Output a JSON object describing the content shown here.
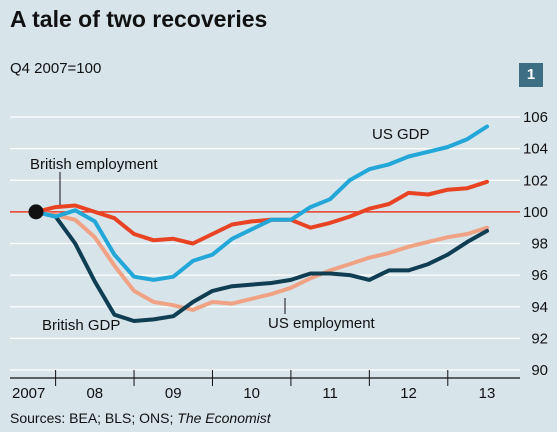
{
  "title": "A tale of two recoveries",
  "subtitle": "Q4 2007=100",
  "chart_number": "1",
  "source": "Sources: BEA; BLS; ONS; ",
  "source_italic": "The Economist",
  "chart_data": {
    "type": "line",
    "ylim": [
      90,
      106
    ],
    "y_ticks": [
      "90",
      "92",
      "94",
      "96",
      "98",
      "100",
      "102",
      "104",
      "106"
    ],
    "x_ticks": [
      "2007",
      "08",
      "09",
      "10",
      "11",
      "12",
      "13"
    ],
    "baseline": 100,
    "colors": {
      "US GDP": "#22a7d8",
      "British employment": "#e84424",
      "British GDP": "#0f3d52",
      "US employment": "#f0a285",
      "baseline": "#e83a24"
    },
    "series": [
      {
        "name": "US GDP",
        "x": [
          2007.75,
          2008.0,
          2008.25,
          2008.5,
          2008.75,
          2009.0,
          2009.25,
          2009.5,
          2009.75,
          2010.0,
          2010.25,
          2010.5,
          2010.75,
          2011.0,
          2011.25,
          2011.5,
          2011.75,
          2012.0,
          2012.25,
          2012.5,
          2012.75,
          2013.0,
          2013.25,
          2013.5
        ],
        "values": [
          100.0,
          99.7,
          100.1,
          99.4,
          97.3,
          95.9,
          95.7,
          95.9,
          96.9,
          97.3,
          98.3,
          98.9,
          99.5,
          99.5,
          100.3,
          100.8,
          102.0,
          102.7,
          103.0,
          103.5,
          103.8,
          104.1,
          104.6,
          105.4
        ]
      },
      {
        "name": "British employment",
        "x": [
          2007.75,
          2008.0,
          2008.25,
          2008.5,
          2008.75,
          2009.0,
          2009.25,
          2009.5,
          2009.75,
          2010.0,
          2010.25,
          2010.5,
          2010.75,
          2011.0,
          2011.25,
          2011.5,
          2011.75,
          2012.0,
          2012.25,
          2012.5,
          2012.75,
          2013.0,
          2013.25,
          2013.5
        ],
        "values": [
          100.0,
          100.3,
          100.4,
          100.0,
          99.6,
          98.6,
          98.2,
          98.3,
          98.0,
          98.6,
          99.2,
          99.4,
          99.5,
          99.5,
          99.0,
          99.3,
          99.7,
          100.2,
          100.5,
          101.2,
          101.1,
          101.4,
          101.5,
          101.9
        ]
      },
      {
        "name": "British GDP",
        "x": [
          2007.75,
          2008.0,
          2008.25,
          2008.5,
          2008.75,
          2009.0,
          2009.25,
          2009.5,
          2009.75,
          2010.0,
          2010.25,
          2010.5,
          2010.75,
          2011.0,
          2011.25,
          2011.5,
          2011.75,
          2012.0,
          2012.25,
          2012.5,
          2012.75,
          2013.0,
          2013.25,
          2013.5
        ],
        "values": [
          100.0,
          99.7,
          98.0,
          95.6,
          93.5,
          93.1,
          93.2,
          93.4,
          94.3,
          95.0,
          95.3,
          95.4,
          95.5,
          95.7,
          96.1,
          96.1,
          96.0,
          95.7,
          96.3,
          96.3,
          96.7,
          97.3,
          98.1,
          98.8
        ]
      },
      {
        "name": "US employment",
        "x": [
          2007.75,
          2008.0,
          2008.25,
          2008.5,
          2008.75,
          2009.0,
          2009.25,
          2009.5,
          2009.75,
          2010.0,
          2010.25,
          2010.5,
          2010.75,
          2011.0,
          2011.25,
          2011.5,
          2011.75,
          2012.0,
          2012.25,
          2012.5,
          2012.75,
          2013.0,
          2013.25,
          2013.5
        ],
        "values": [
          100.0,
          99.8,
          99.5,
          98.4,
          96.6,
          95.0,
          94.3,
          94.1,
          93.8,
          94.3,
          94.2,
          94.5,
          94.8,
          95.2,
          95.8,
          96.3,
          96.7,
          97.1,
          97.4,
          97.8,
          98.1,
          98.4,
          98.6,
          99.0
        ]
      }
    ],
    "series_labels": [
      "US GDP",
      "British employment",
      "British GDP",
      "US employment"
    ]
  }
}
